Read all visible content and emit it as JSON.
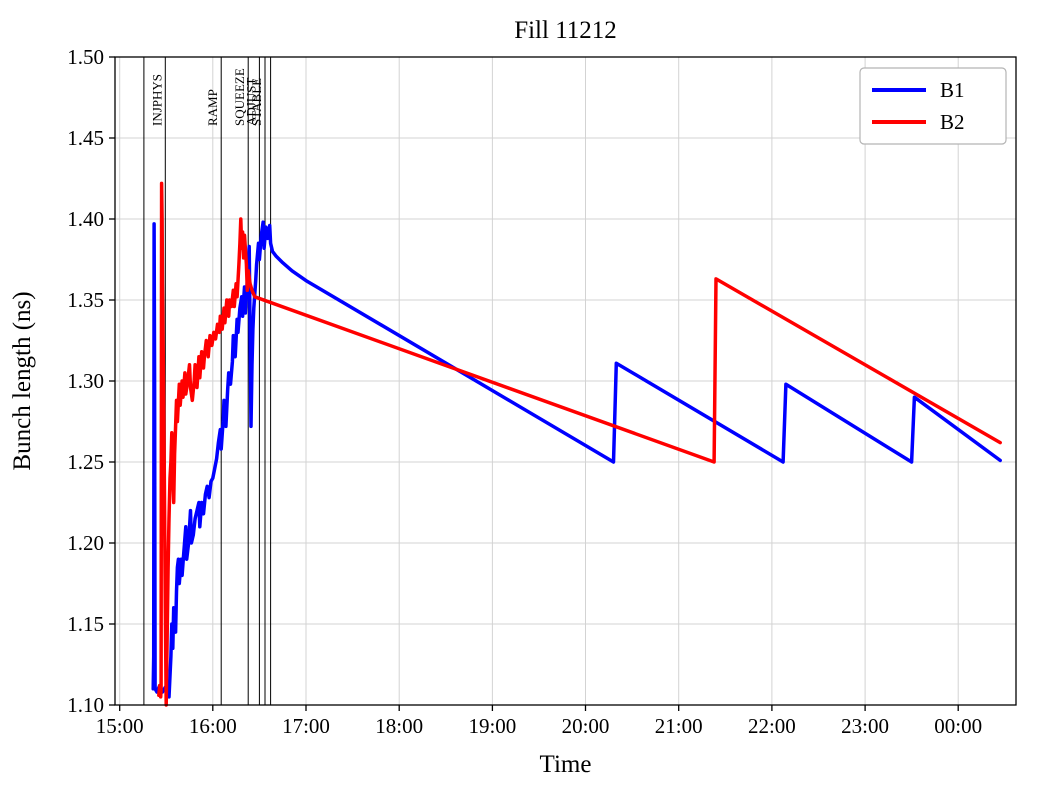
{
  "chart_data": {
    "type": "line",
    "title": "Fill 11212",
    "xlabel": "Time",
    "ylabel": "Bunch length (ns)",
    "xlim_hours": [
      14.95,
      24.62
    ],
    "ylim": [
      1.1,
      1.5
    ],
    "grid": true,
    "grid_color": "#d3d3d3",
    "xticks": [
      {
        "value": 15,
        "label": "15:00"
      },
      {
        "value": 16,
        "label": "16:00"
      },
      {
        "value": 17,
        "label": "17:00"
      },
      {
        "value": 18,
        "label": "18:00"
      },
      {
        "value": 19,
        "label": "19:00"
      },
      {
        "value": 20,
        "label": "20:00"
      },
      {
        "value": 21,
        "label": "21:00"
      },
      {
        "value": 22,
        "label": "22:00"
      },
      {
        "value": 23,
        "label": "23:00"
      },
      {
        "value": 24,
        "label": "00:00"
      }
    ],
    "yticks": [
      {
        "value": 1.1,
        "label": "1.10"
      },
      {
        "value": 1.15,
        "label": "1.15"
      },
      {
        "value": 1.2,
        "label": "1.20"
      },
      {
        "value": 1.25,
        "label": "1.25"
      },
      {
        "value": 1.3,
        "label": "1.30"
      },
      {
        "value": 1.35,
        "label": "1.35"
      },
      {
        "value": 1.4,
        "label": "1.40"
      },
      {
        "value": 1.45,
        "label": "1.45"
      },
      {
        "value": 1.5,
        "label": "1.50"
      }
    ],
    "event_lines": [
      {
        "time": 15.26,
        "label": ""
      },
      {
        "time": 15.49,
        "label": "INJPHYS"
      },
      {
        "time": 16.09,
        "label": "RAMP"
      },
      {
        "time": 16.38,
        "label": "SQUEEZE"
      },
      {
        "time": 16.5,
        "label": "ADJUST"
      },
      {
        "time": 16.56,
        "label": "STABLE"
      },
      {
        "time": 16.62,
        "label": ""
      }
    ],
    "legend": {
      "position": "upper right",
      "entries": [
        {
          "label": "B1",
          "color": "#0000ff"
        },
        {
          "label": "B2",
          "color": "#ff0000"
        }
      ]
    },
    "series": [
      {
        "name": "B1",
        "color": "#0000ff",
        "points": [
          [
            15.36,
            1.11
          ],
          [
            15.365,
            1.13
          ],
          [
            15.37,
            1.397
          ],
          [
            15.375,
            1.3
          ],
          [
            15.38,
            1.11
          ],
          [
            15.4,
            1.108
          ],
          [
            15.43,
            1.112
          ],
          [
            15.46,
            1.108
          ],
          [
            15.49,
            1.111
          ],
          [
            15.52,
            1.109
          ],
          [
            15.53,
            1.105
          ],
          [
            15.55,
            1.13
          ],
          [
            15.56,
            1.15
          ],
          [
            15.57,
            1.135
          ],
          [
            15.58,
            1.16
          ],
          [
            15.6,
            1.145
          ],
          [
            15.61,
            1.17
          ],
          [
            15.62,
            1.185
          ],
          [
            15.63,
            1.19
          ],
          [
            15.64,
            1.175
          ],
          [
            15.66,
            1.19
          ],
          [
            15.67,
            1.18
          ],
          [
            15.69,
            1.195
          ],
          [
            15.71,
            1.21
          ],
          [
            15.72,
            1.19
          ],
          [
            15.74,
            1.2
          ],
          [
            15.76,
            1.22
          ],
          [
            15.77,
            1.2
          ],
          [
            15.79,
            1.205
          ],
          [
            15.81,
            1.215
          ],
          [
            15.83,
            1.22
          ],
          [
            15.85,
            1.225
          ],
          [
            15.86,
            1.21
          ],
          [
            15.88,
            1.225
          ],
          [
            15.9,
            1.218
          ],
          [
            15.92,
            1.23
          ],
          [
            15.94,
            1.235
          ],
          [
            15.96,
            1.228
          ],
          [
            15.98,
            1.238
          ],
          [
            16.0,
            1.24
          ],
          [
            16.02,
            1.246
          ],
          [
            16.04,
            1.252
          ],
          [
            16.06,
            1.262
          ],
          [
            16.08,
            1.27
          ],
          [
            16.09,
            1.258
          ],
          [
            16.11,
            1.275
          ],
          [
            16.12,
            1.288
          ],
          [
            16.14,
            1.272
          ],
          [
            16.16,
            1.295
          ],
          [
            16.17,
            1.305
          ],
          [
            16.19,
            1.298
          ],
          [
            16.21,
            1.312
          ],
          [
            16.22,
            1.328
          ],
          [
            16.24,
            1.315
          ],
          [
            16.26,
            1.338
          ],
          [
            16.27,
            1.33
          ],
          [
            16.29,
            1.345
          ],
          [
            16.31,
            1.352
          ],
          [
            16.32,
            1.34
          ],
          [
            16.34,
            1.358
          ],
          [
            16.35,
            1.342
          ],
          [
            16.37,
            1.362
          ],
          [
            16.39,
            1.383
          ],
          [
            16.4,
            1.33
          ],
          [
            16.41,
            1.272
          ],
          [
            16.42,
            1.31
          ],
          [
            16.43,
            1.332
          ],
          [
            16.44,
            1.345
          ],
          [
            16.46,
            1.362
          ],
          [
            16.47,
            1.372
          ],
          [
            16.49,
            1.385
          ],
          [
            16.5,
            1.375
          ],
          [
            16.52,
            1.39
          ],
          [
            16.54,
            1.398
          ],
          [
            16.55,
            1.382
          ],
          [
            16.57,
            1.395
          ],
          [
            16.59,
            1.388
          ],
          [
            16.61,
            1.396
          ],
          [
            16.62,
            1.385
          ],
          [
            16.64,
            1.38
          ],
          [
            16.68,
            1.377
          ],
          [
            16.75,
            1.373
          ],
          [
            16.85,
            1.368
          ],
          [
            17.0,
            1.362
          ],
          [
            20.3,
            1.25
          ],
          [
            20.33,
            1.311
          ],
          [
            22.12,
            1.25
          ],
          [
            22.15,
            1.298
          ],
          [
            23.5,
            1.25
          ],
          [
            23.53,
            1.29
          ],
          [
            24.45,
            1.251
          ]
        ]
      },
      {
        "name": "B2",
        "color": "#ff0000",
        "points": [
          [
            15.42,
            1.106
          ],
          [
            15.43,
            1.112
          ],
          [
            15.44,
            1.105
          ],
          [
            15.445,
            1.11
          ],
          [
            15.45,
            1.422
          ],
          [
            15.455,
            1.4
          ],
          [
            15.46,
            1.36
          ],
          [
            15.47,
            1.3
          ],
          [
            15.48,
            1.235
          ],
          [
            15.49,
            1.16
          ],
          [
            15.5,
            1.1
          ],
          [
            15.52,
            1.185
          ],
          [
            15.53,
            1.215
          ],
          [
            15.54,
            1.24
          ],
          [
            15.55,
            1.25
          ],
          [
            15.56,
            1.268
          ],
          [
            15.57,
            1.24
          ],
          [
            15.58,
            1.225
          ],
          [
            15.59,
            1.255
          ],
          [
            15.6,
            1.272
          ],
          [
            15.61,
            1.288
          ],
          [
            15.62,
            1.275
          ],
          [
            15.64,
            1.298
          ],
          [
            15.65,
            1.285
          ],
          [
            15.67,
            1.3
          ],
          [
            15.68,
            1.29
          ],
          [
            15.7,
            1.305
          ],
          [
            15.71,
            1.292
          ],
          [
            15.73,
            1.3
          ],
          [
            15.75,
            1.31
          ],
          [
            15.76,
            1.296
          ],
          [
            15.78,
            1.288
          ],
          [
            15.8,
            1.3
          ],
          [
            15.81,
            1.31
          ],
          [
            15.83,
            1.296
          ],
          [
            15.85,
            1.315
          ],
          [
            15.86,
            1.302
          ],
          [
            15.88,
            1.318
          ],
          [
            15.9,
            1.308
          ],
          [
            15.91,
            1.315
          ],
          [
            15.93,
            1.325
          ],
          [
            15.95,
            1.315
          ],
          [
            15.97,
            1.328
          ],
          [
            15.99,
            1.322
          ],
          [
            16.01,
            1.33
          ],
          [
            16.03,
            1.326
          ],
          [
            16.05,
            1.335
          ],
          [
            16.07,
            1.33
          ],
          [
            16.08,
            1.34
          ],
          [
            16.1,
            1.332
          ],
          [
            16.12,
            1.345
          ],
          [
            16.13,
            1.336
          ],
          [
            16.15,
            1.35
          ],
          [
            16.17,
            1.34
          ],
          [
            16.18,
            1.35
          ],
          [
            16.2,
            1.346
          ],
          [
            16.22,
            1.356
          ],
          [
            16.23,
            1.346
          ],
          [
            16.25,
            1.36
          ],
          [
            16.26,
            1.352
          ],
          [
            16.28,
            1.372
          ],
          [
            16.29,
            1.385
          ],
          [
            16.3,
            1.4
          ],
          [
            16.31,
            1.382
          ],
          [
            16.32,
            1.392
          ],
          [
            16.33,
            1.376
          ],
          [
            16.34,
            1.39
          ],
          [
            16.36,
            1.372
          ],
          [
            16.37,
            1.356
          ],
          [
            16.38,
            1.368
          ],
          [
            16.4,
            1.36
          ],
          [
            16.42,
            1.356
          ],
          [
            16.45,
            1.352
          ],
          [
            21.38,
            1.25
          ],
          [
            21.4,
            1.363
          ],
          [
            24.45,
            1.262
          ]
        ]
      }
    ]
  }
}
